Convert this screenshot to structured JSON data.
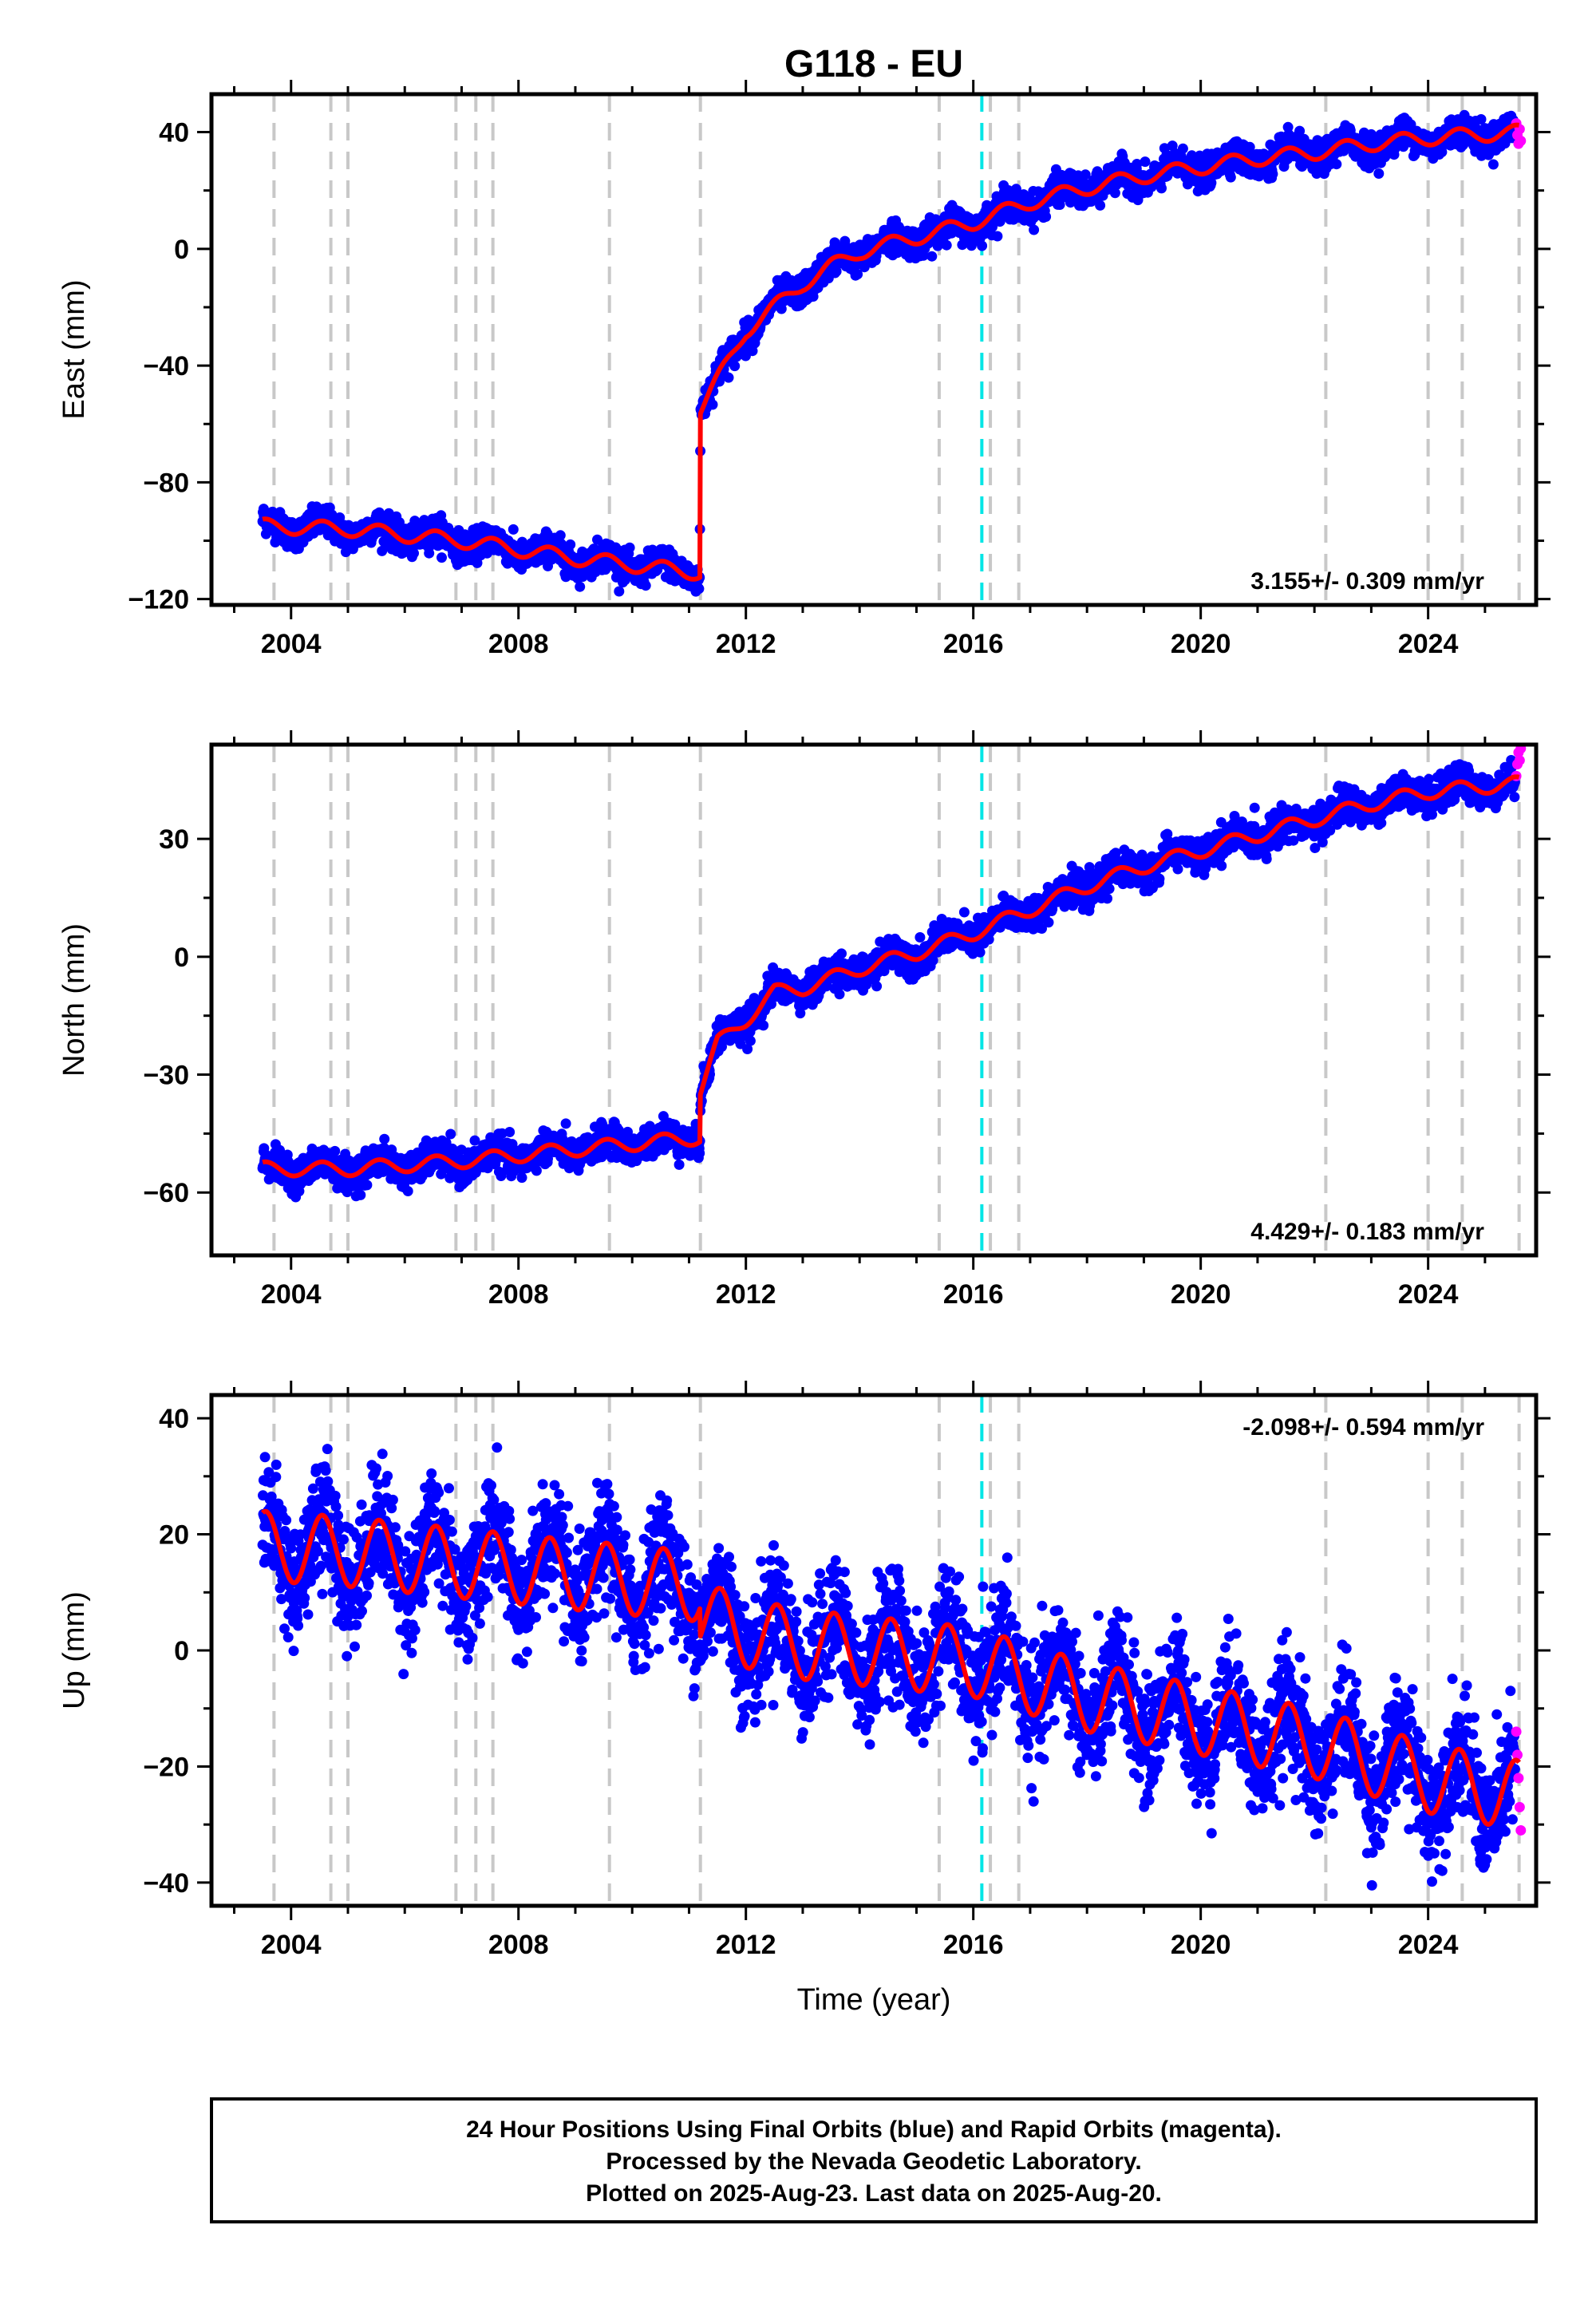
{
  "page_title": "G118 - EU",
  "x_axis_label": "Time (year)",
  "colors": {
    "final": "#0000ff",
    "rapid": "#ff00ff",
    "model": "#ff0000",
    "event_gray": "#c8c8c8",
    "event_cyan": "#00e5e5"
  },
  "events": {
    "gray": [
      2003.7,
      2004.7,
      2005.0,
      2006.9,
      2007.25,
      2007.55,
      2009.6,
      2011.2,
      2015.4,
      2016.3,
      2016.8,
      2022.2,
      2024.0,
      2024.6,
      2025.6
    ],
    "cyan": [
      2016.15
    ]
  },
  "footer": {
    "line1": "24 Hour Positions Using Final Orbits (blue) and Rapid Orbits (magenta).",
    "line2": "Processed by the Nevada Geodetic Laboratory.",
    "line3": "Plotted on 2025-Aug-23. Last data on 2025-Aug-20."
  },
  "chart_data": [
    {
      "type": "scatter",
      "ylabel": "East (mm)",
      "xlim": [
        2002.6,
        2025.9
      ],
      "ylim": [
        -122,
        53
      ],
      "xticks": [
        2004,
        2008,
        2012,
        2016,
        2020,
        2024
      ],
      "yticks": [
        -120,
        -80,
        -40,
        0,
        40
      ],
      "rate_text": "3.155+/- 0.309 mm/yr",
      "rate_position": "bottom-right",
      "model_trend": [
        [
          2003.5,
          -95
        ],
        [
          2005.0,
          -96
        ],
        [
          2007.0,
          -100
        ],
        [
          2009.0,
          -106
        ],
        [
          2011.19,
          -111
        ],
        [
          2011.2,
          -55
        ],
        [
          2011.5,
          -45
        ],
        [
          2012.0,
          -28
        ],
        [
          2012.5,
          -20
        ],
        [
          2013.0,
          -12
        ],
        [
          2013.5,
          -6
        ],
        [
          2014.0,
          -1
        ],
        [
          2015.0,
          4
        ],
        [
          2016.0,
          9
        ],
        [
          2017.0,
          16
        ],
        [
          2018.0,
          21
        ],
        [
          2019.0,
          25
        ],
        [
          2020.0,
          28
        ],
        [
          2021.0,
          31
        ],
        [
          2022.0,
          33
        ],
        [
          2023.0,
          36
        ],
        [
          2024.0,
          38
        ],
        [
          2025.6,
          40
        ]
      ],
      "seasonal_amplitude": 2.5,
      "scatter_noise": 2.5,
      "rapid_points": [
        [
          2025.55,
          43
        ],
        [
          2025.57,
          39
        ],
        [
          2025.59,
          36
        ],
        [
          2025.61,
          41
        ],
        [
          2025.63,
          37
        ]
      ]
    },
    {
      "type": "scatter",
      "ylabel": "North (mm)",
      "xlim": [
        2002.6,
        2025.9
      ],
      "ylim": [
        -76,
        54
      ],
      "xticks": [
        2004,
        2008,
        2012,
        2016,
        2020,
        2024
      ],
      "yticks": [
        -60,
        -30,
        0,
        30
      ],
      "rate_text": "4.429+/- 0.183 mm/yr",
      "rate_position": "bottom-right",
      "model_trend": [
        [
          2003.5,
          -54
        ],
        [
          2005.0,
          -54
        ],
        [
          2007.0,
          -52
        ],
        [
          2009.0,
          -49
        ],
        [
          2011.19,
          -46
        ],
        [
          2011.2,
          -34
        ],
        [
          2011.5,
          -22
        ],
        [
          2012.0,
          -16
        ],
        [
          2012.5,
          -9
        ],
        [
          2013.0,
          -8
        ],
        [
          2014.0,
          -3
        ],
        [
          2015.0,
          1
        ],
        [
          2016.0,
          6
        ],
        [
          2017.0,
          12
        ],
        [
          2018.0,
          18
        ],
        [
          2019.0,
          23
        ],
        [
          2020.0,
          27
        ],
        [
          2021.0,
          31
        ],
        [
          2022.0,
          35
        ],
        [
          2023.0,
          39
        ],
        [
          2024.0,
          42
        ],
        [
          2025.5,
          44
        ]
      ],
      "seasonal_amplitude": 1.8,
      "scatter_noise": 2.0,
      "rapid_points": [
        [
          2025.55,
          46
        ],
        [
          2025.57,
          49
        ],
        [
          2025.59,
          52
        ],
        [
          2025.61,
          50
        ],
        [
          2025.63,
          53
        ]
      ]
    },
    {
      "type": "scatter",
      "ylabel": "Up (mm)",
      "xlim": [
        2002.6,
        2025.9
      ],
      "ylim": [
        -44,
        44
      ],
      "xticks": [
        2004,
        2008,
        2012,
        2016,
        2020,
        2024
      ],
      "yticks": [
        -40,
        -20,
        0,
        20,
        40
      ],
      "rate_text": "-2.098+/- 0.594 mm/yr",
      "rate_position": "top-right",
      "model_trend": [
        [
          2003.5,
          18
        ],
        [
          2005.0,
          17
        ],
        [
          2007.0,
          15
        ],
        [
          2009.0,
          13
        ],
        [
          2011.19,
          11
        ],
        [
          2011.2,
          6
        ],
        [
          2012.0,
          3
        ],
        [
          2013.0,
          1
        ],
        [
          2014.0,
          0
        ],
        [
          2015.0,
          -1
        ],
        [
          2016.0,
          -2
        ],
        [
          2017.0,
          -5
        ],
        [
          2018.0,
          -8
        ],
        [
          2019.0,
          -10
        ],
        [
          2020.0,
          -12
        ],
        [
          2021.0,
          -14
        ],
        [
          2022.0,
          -16
        ],
        [
          2023.0,
          -19
        ],
        [
          2024.0,
          -22
        ],
        [
          2025.6,
          -25
        ]
      ],
      "seasonal_amplitude": 6,
      "scatter_noise": 5,
      "rapid_points": [
        [
          2025.55,
          -14
        ],
        [
          2025.57,
          -18
        ],
        [
          2025.59,
          -22
        ],
        [
          2025.61,
          -27
        ],
        [
          2025.63,
          -31
        ]
      ]
    }
  ]
}
